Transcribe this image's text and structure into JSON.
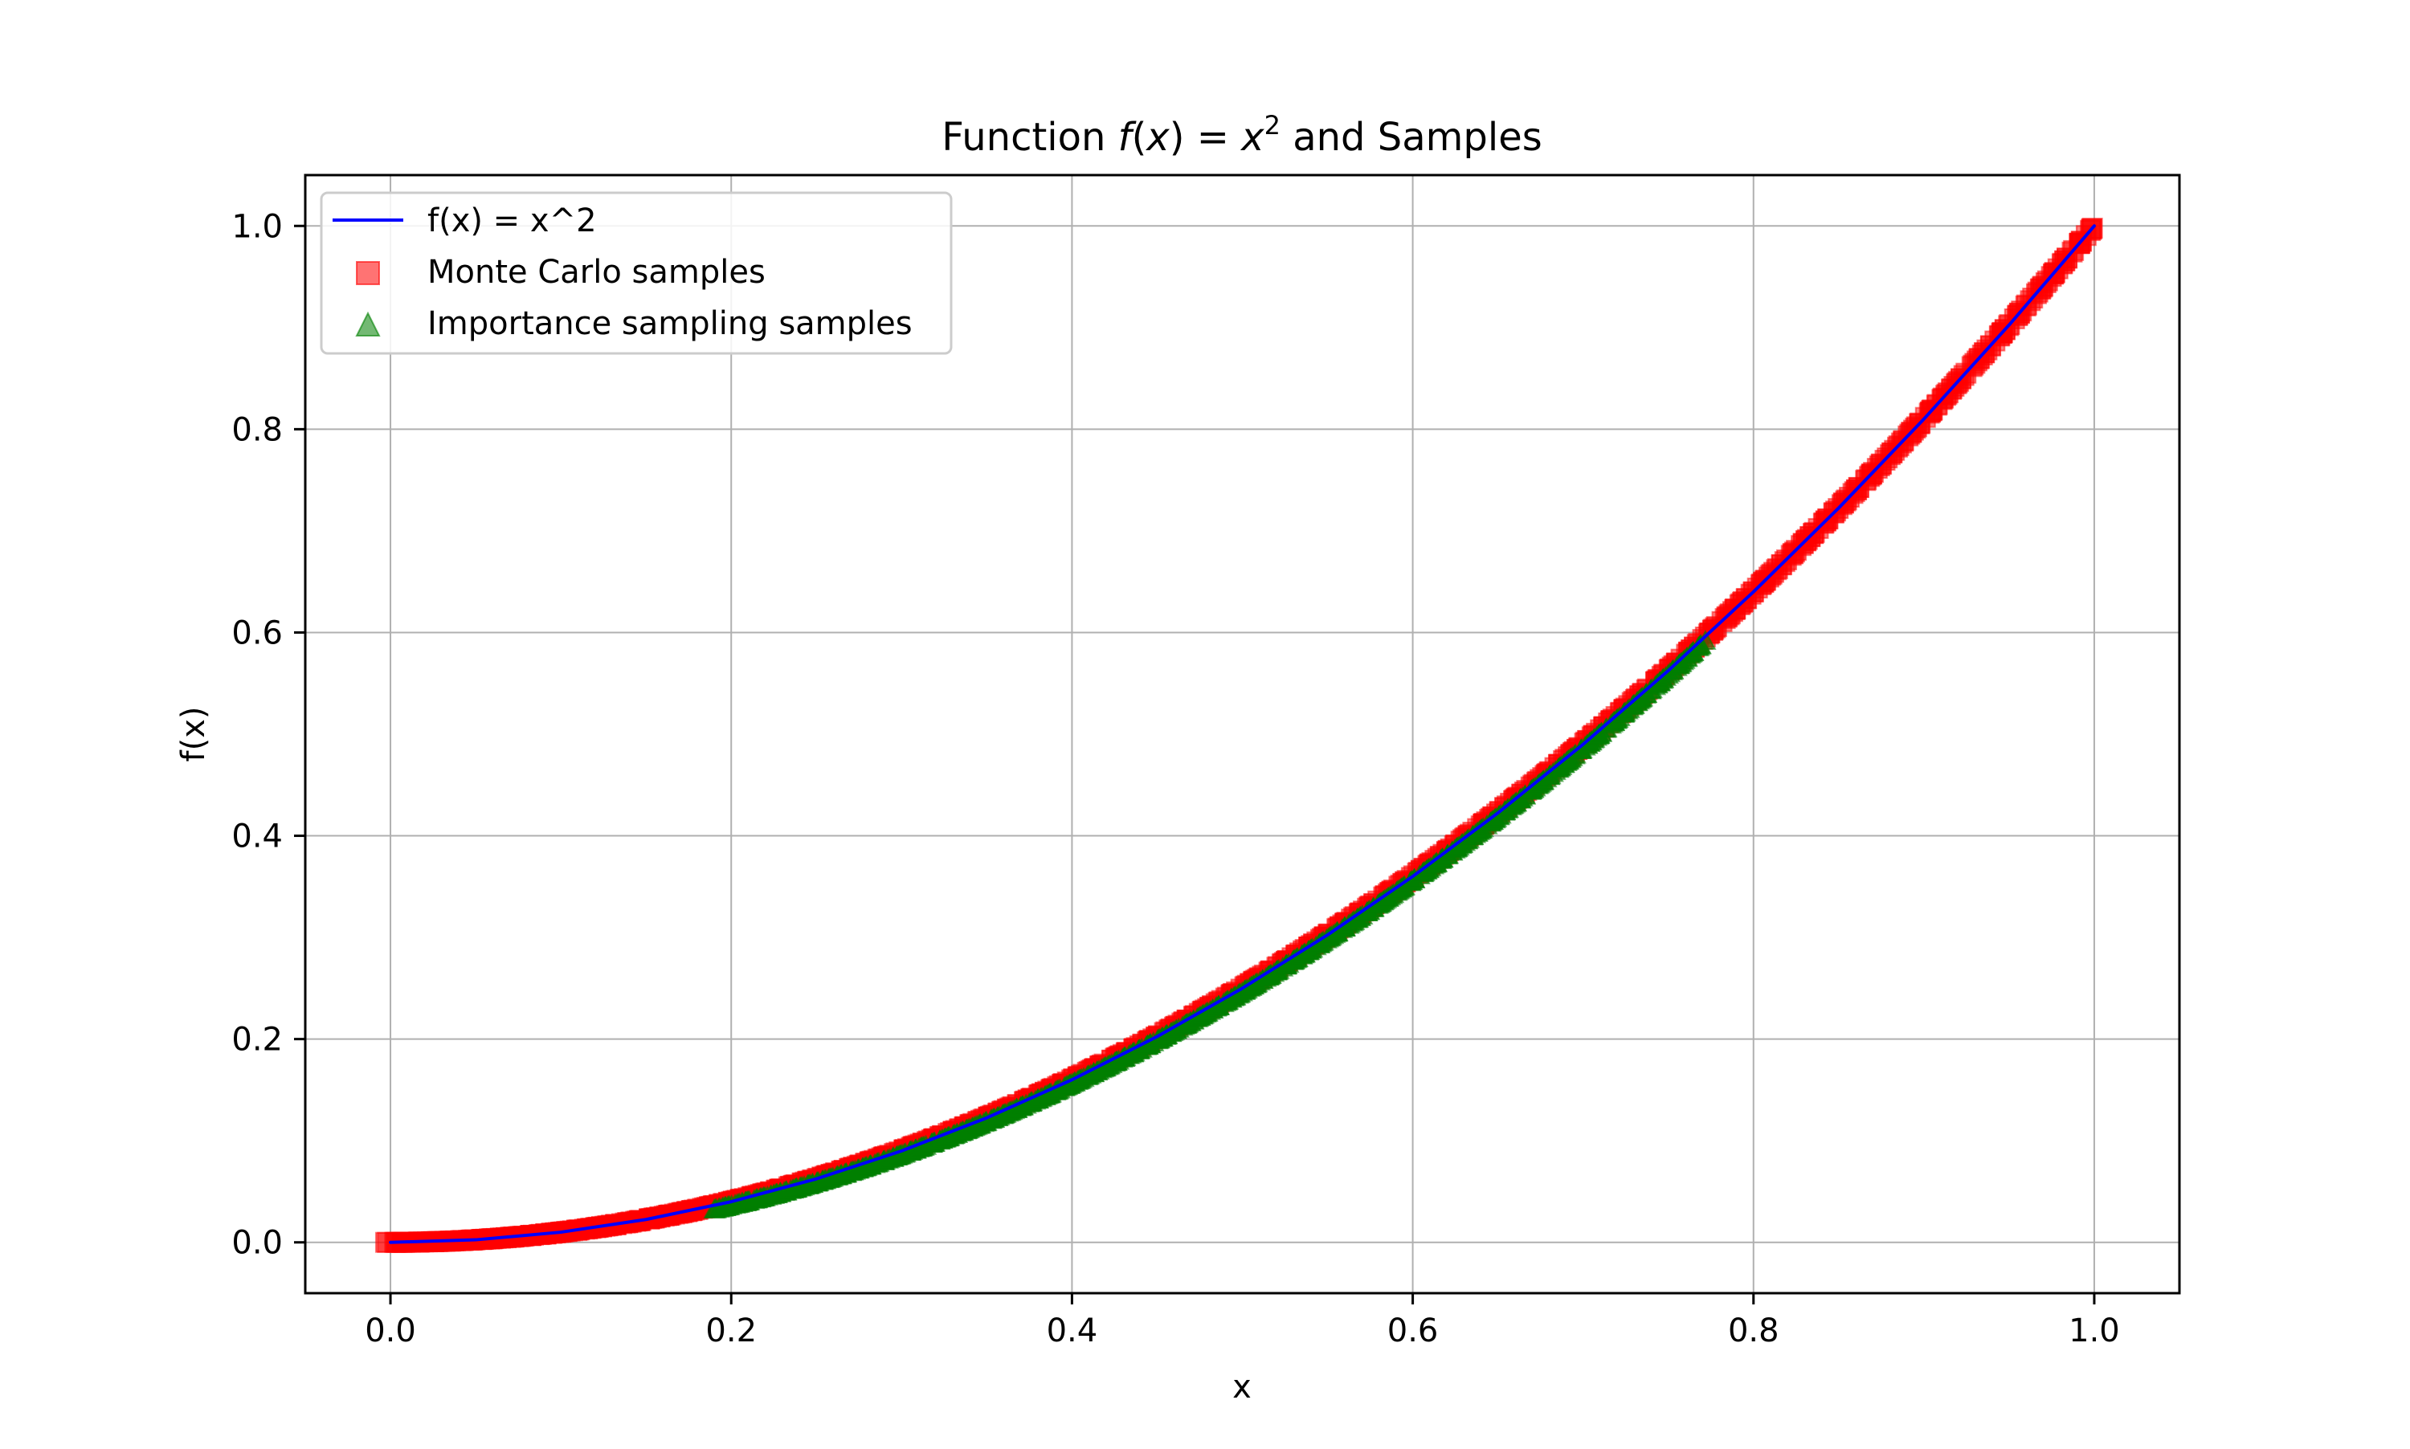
{
  "chart_data": {
    "type": "scatter",
    "title": {
      "prefix": "Function ",
      "fn": "f",
      "open": "(",
      "var": "x",
      "close": ")",
      "eq": " = ",
      "base": "x",
      "exp": "2",
      "suffix": " and Samples"
    },
    "xlabel": "x",
    "ylabel": "f(x)",
    "xlim": [
      -0.05,
      1.05
    ],
    "ylim": [
      -0.05,
      1.05
    ],
    "xticks": [
      0.0,
      0.2,
      0.4,
      0.6,
      0.8,
      1.0
    ],
    "yticks": [
      0.0,
      0.2,
      0.4,
      0.6,
      0.8,
      1.0
    ],
    "xtick_labels": [
      "0.0",
      "0.2",
      "0.4",
      "0.6",
      "0.8",
      "1.0"
    ],
    "ytick_labels": [
      "0.0",
      "0.2",
      "0.4",
      "0.6",
      "0.8",
      "1.0"
    ],
    "grid": true,
    "legend_position": "top-left",
    "series": [
      {
        "name": "f(x) = x^2",
        "kind": "line",
        "color": "#0000ff",
        "x": [
          0.0,
          0.05,
          0.1,
          0.15,
          0.2,
          0.25,
          0.3,
          0.35,
          0.4,
          0.45,
          0.5,
          0.55,
          0.6,
          0.65,
          0.7,
          0.75,
          0.8,
          0.85,
          0.9,
          0.95,
          1.0
        ],
        "y": [
          0.0,
          0.0025,
          0.01,
          0.0225,
          0.04,
          0.0625,
          0.09,
          0.1225,
          0.16,
          0.2025,
          0.25,
          0.3025,
          0.36,
          0.4225,
          0.49,
          0.5625,
          0.64,
          0.7225,
          0.81,
          0.9025,
          1.0
        ]
      },
      {
        "name": "Monte Carlo samples",
        "kind": "scatter",
        "marker": "square",
        "color": "#ff0000",
        "x_range": [
          0.0,
          1.0
        ],
        "relation": "y = x^2"
      },
      {
        "name": "Importance sampling samples",
        "kind": "scatter",
        "marker": "triangle",
        "color": "#008000",
        "x_range": [
          0.19,
          0.77
        ],
        "relation": "y = x^2"
      }
    ]
  }
}
